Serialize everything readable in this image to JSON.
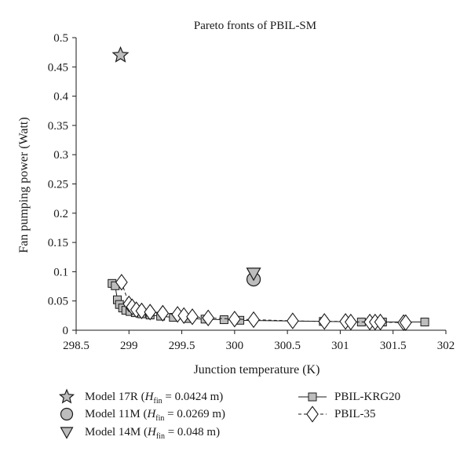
{
  "chart_data": {
    "type": "scatter",
    "title": "Pareto fronts of PBIL-SM",
    "xlabel": "Junction temperature (K)",
    "ylabel": "Fan pumping power (Watt)",
    "xlim": [
      298.5,
      302
    ],
    "ylim": [
      0,
      0.5
    ],
    "xticks": [
      "298.5",
      "299",
      "299.5",
      "300",
      "300.5",
      "301",
      "301.5",
      "302"
    ],
    "yticks": [
      "0",
      "0.05",
      "0.1",
      "0.15",
      "0.2",
      "0.25",
      "0.3",
      "0.35",
      "0.4",
      "0.45",
      "0.5"
    ],
    "grid": false,
    "series": [
      {
        "name": "PBIL-KRG20",
        "marker": "square",
        "line": "solid",
        "color": "#bdbdbd",
        "x": [
          298.84,
          298.87,
          298.89,
          298.91,
          298.94,
          298.97,
          299.01,
          299.06,
          299.12,
          299.2,
          299.3,
          299.42,
          299.55,
          299.72,
          299.9,
          300.05,
          300.84,
          301.2,
          301.4,
          301.8
        ],
        "y": [
          0.08,
          0.076,
          0.052,
          0.044,
          0.038,
          0.034,
          0.032,
          0.03,
          0.028,
          0.026,
          0.024,
          0.022,
          0.02,
          0.019,
          0.018,
          0.017,
          0.015,
          0.014,
          0.014,
          0.014
        ]
      },
      {
        "name": "PBIL-35",
        "marker": "diamond",
        "line": "dashed",
        "color": "#ffffff",
        "x": [
          298.93,
          299.0,
          299.03,
          299.07,
          299.12,
          299.2,
          299.32,
          299.46,
          299.52,
          299.6,
          299.75,
          300.0,
          300.18,
          300.55,
          300.85,
          301.05,
          301.1,
          301.28,
          301.33,
          301.38,
          301.6,
          301.62
        ],
        "y": [
          0.082,
          0.045,
          0.04,
          0.035,
          0.033,
          0.031,
          0.029,
          0.027,
          0.025,
          0.023,
          0.021,
          0.019,
          0.018,
          0.016,
          0.015,
          0.015,
          0.014,
          0.014,
          0.014,
          0.014,
          0.013,
          0.013
        ]
      }
    ],
    "models": [
      {
        "name": "Model 17R",
        "hfin": "0.0424",
        "marker": "star",
        "color": "#bdbdbd",
        "x": 298.92,
        "y": 0.47
      },
      {
        "name": "Model 11M",
        "hfin": "0.0269",
        "marker": "circle",
        "color": "#bdbdbd",
        "x": 300.18,
        "y": 0.087
      },
      {
        "name": "Model 14M",
        "hfin": "0.048",
        "marker": "triangle-down",
        "color": "#bdbdbd",
        "x": 300.18,
        "y": 0.097
      }
    ],
    "legend": {
      "placement": "bottom",
      "hfin_symbol": "H",
      "hfin_subscript": "fin",
      "unit": "m"
    }
  }
}
